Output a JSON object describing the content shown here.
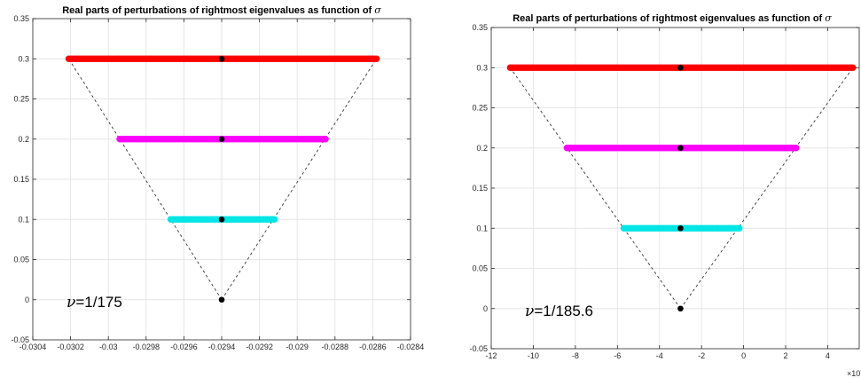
{
  "chart_data": [
    {
      "type": "scatter",
      "title": "Real parts of perturbations of rightmost eigenvalues as function of",
      "title_symbol": "σ",
      "annotation_symbol": "ν",
      "annotation_value": "=1/175",
      "xlim": [
        -0.0304,
        -0.0284
      ],
      "ylim": [
        -0.05,
        0.35
      ],
      "x_ticks": [
        -0.0304,
        -0.0302,
        -0.03,
        -0.0298,
        -0.0296,
        -0.0294,
        -0.0292,
        -0.029,
        -0.0288,
        -0.0286,
        -0.0284
      ],
      "x_tick_labels": [
        "-0.0304",
        "-0.0302",
        "-0.03",
        "-0.0298",
        "-0.0296",
        "-0.0294",
        "-0.0292",
        "-0.029",
        "-0.0288",
        "-0.0286",
        "-0.0284"
      ],
      "y_ticks": [
        -0.05,
        0,
        0.05,
        0.1,
        0.15,
        0.2,
        0.25,
        0.3,
        0.35
      ],
      "y_tick_labels": [
        "-0.05",
        "0",
        "0.05",
        "0.1",
        "0.15",
        "0.2",
        "0.25",
        "0.3",
        "0.35"
      ],
      "grid": true,
      "series": [
        {
          "color": "#ff0000",
          "y": 0.3,
          "x_range": [
            -0.03021,
            -0.02858
          ]
        },
        {
          "color": "#ff00ff",
          "y": 0.2,
          "x_range": [
            -0.02994,
            -0.02885
          ]
        },
        {
          "color": "#00e5e5",
          "y": 0.1,
          "x_range": [
            -0.02967,
            -0.02912
          ]
        }
      ],
      "centers": {
        "color": "#000000",
        "x": -0.0294,
        "y": [
          0,
          0.1,
          0.2,
          0.3
        ]
      },
      "cone": {
        "apex": [
          -0.0294,
          0
        ],
        "left_top": [
          -0.03021,
          0.3
        ],
        "right_top": [
          -0.02858,
          0.3
        ]
      }
    },
    {
      "type": "scatter",
      "title": "Real parts of perturbations of rightmost eigenvalues as function of",
      "title_symbol": "σ",
      "annotation_symbol": "ν",
      "annotation_value": "=1/185.6",
      "xlim": [
        -12,
        5.5
      ],
      "ylim": [
        -0.05,
        0.35
      ],
      "x_exponent_label": "×10",
      "x_exponent_power": "-4",
      "x_ticks": [
        -12,
        -10,
        -8,
        -6,
        -4,
        -2,
        0,
        2,
        4
      ],
      "x_tick_labels": [
        "-12",
        "-10",
        "-8",
        "-6",
        "-4",
        "-2",
        "0",
        "2",
        "4"
      ],
      "y_ticks": [
        -0.05,
        0,
        0.05,
        0.1,
        0.15,
        0.2,
        0.25,
        0.3,
        0.35
      ],
      "y_tick_labels": [
        "-0.05",
        "0",
        "0.05",
        "0.1",
        "0.15",
        "0.2",
        "0.25",
        "0.3",
        "0.35"
      ],
      "grid": true,
      "series": [
        {
          "color": "#ff0000",
          "y": 0.3,
          "x_range": [
            -11.1,
            5.2
          ]
        },
        {
          "color": "#ff00ff",
          "y": 0.2,
          "x_range": [
            -8.4,
            2.5
          ]
        },
        {
          "color": "#00e5e5",
          "y": 0.1,
          "x_range": [
            -5.7,
            -0.2
          ]
        }
      ],
      "centers": {
        "color": "#000000",
        "x": -3.0,
        "y": [
          0,
          0.1,
          0.2,
          0.3
        ]
      },
      "cone": {
        "apex": [
          -3.0,
          0
        ],
        "left_top": [
          -11.1,
          0.3
        ],
        "right_top": [
          5.2,
          0.3
        ]
      }
    }
  ]
}
